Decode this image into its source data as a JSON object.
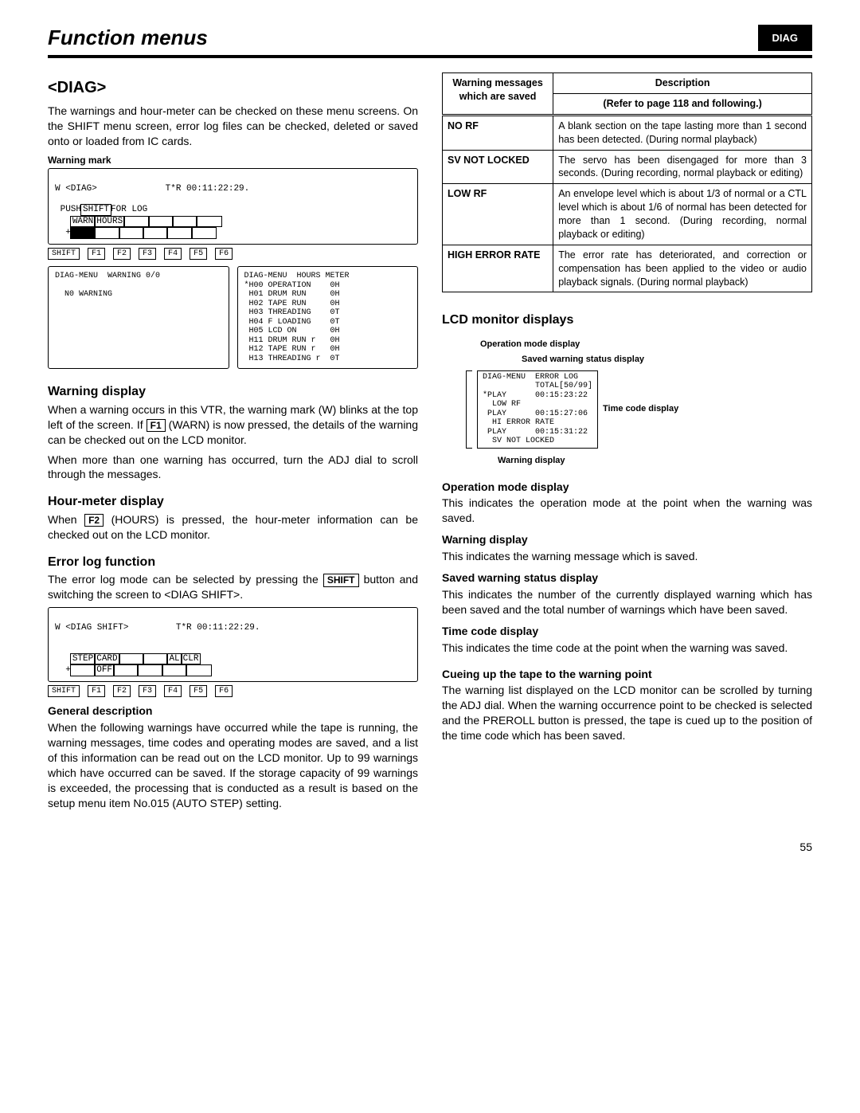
{
  "header": {
    "title": "Function menus",
    "tag": "DIAG"
  },
  "section_title": "<DIAG>",
  "intro": "The warnings and hour-meter can be checked on these menu screens.  On the SHIFT menu screen, error log files can be checked, deleted or saved onto or loaded from IC cards.",
  "warning_mark_caption": "Warning mark",
  "lcd1": {
    "line_title": "W <DIAG>",
    "line_tcr": "T*R 00:11:22:29.",
    "push_prefix": "PUSH",
    "push_shift": "SHIFT",
    "push_suffix": "FOR LOG",
    "btn_warn": "WARN",
    "btn_hours": "HOURS"
  },
  "fkeys_labels": [
    "SHIFT",
    "F1",
    "F2",
    "F3",
    "F4",
    "F5",
    "F6"
  ],
  "lcd_warn": "DIAG-MENU  WARNING 0/0\n\n  N0 WARNING",
  "lcd_hours_header": "DIAG-MENU  HOURS METER",
  "lcd_hours_rows": [
    [
      "*H00",
      "OPERATION",
      "0H"
    ],
    [
      " H01",
      "DRUM RUN",
      "0H"
    ],
    [
      " H02",
      "TAPE RUN",
      "0H"
    ],
    [
      " H03",
      "THREADING",
      "0T"
    ],
    [
      " H04",
      "F LOADING",
      "0T"
    ],
    [
      " H05",
      "LCD ON",
      "0H"
    ],
    [
      " H11",
      "DRUM RUN r",
      "0H"
    ],
    [
      " H12",
      "TAPE RUN r",
      "0H"
    ],
    [
      " H13",
      "THREADING r",
      "0T"
    ]
  ],
  "warning_display": {
    "title": "Warning display",
    "p1a": "When a warning occurs in this VTR, the warning mark (W) blinks at the top left of the screen.  If ",
    "kbd1": "F1",
    "p1b": " (WARN) is now pressed, the details of the warning can be checked out on the LCD monitor.",
    "p2": "When more than one warning has occurred, turn the ADJ dial to scroll through the messages."
  },
  "hour_meter": {
    "title": "Hour-meter display",
    "p1a": "When ",
    "kbd": "F2",
    "p1b": " (HOURS) is pressed, the hour-meter information can be checked out on the LCD monitor."
  },
  "error_log": {
    "title": "Error log function",
    "p1a": "The error log mode can be selected by pressing the ",
    "kbd": "SHIFT",
    "p1b": " button and switching the screen to <DIAG SHIFT>."
  },
  "lcd2": {
    "line_title": "W <DIAG SHIFT>",
    "line_tcr": "T*R 00:11:22:29.",
    "btns": [
      "STEP",
      "CARD",
      "",
      "",
      "AL",
      "CLR"
    ],
    "sub": "OFF"
  },
  "general": {
    "title": "General description",
    "p": "When the following warnings have occurred while the tape is running, the warning messages, time codes and operating modes are saved, and a list of this information can be read out on the LCD monitor.  Up to 99 warnings which have occurred can be saved.  If the storage capacity of 99 warnings is exceeded, the processing that is conducted as a result is based on the setup menu item No.015 (AUTO STEP) setting."
  },
  "wtable": {
    "head1": "Warning messages which are saved",
    "head2": "Description",
    "head2_sub": "(Refer to page 118 and following.)",
    "rows": [
      {
        "name": "NO RF",
        "desc": "A blank section on the tape lasting more than 1 second has been detected. (During normal playback)"
      },
      {
        "name": "SV NOT LOCKED",
        "desc": "The servo has been disengaged for more than 3 seconds.  (During recording, normal playback or editing)"
      },
      {
        "name": "LOW RF",
        "desc": "An envelope level which is about 1/3 of normal or a CTL level which is about 1/6 of normal has been detected for more than 1 second.  (During recording, normal playback or editing)"
      },
      {
        "name": "HIGH ERROR RATE",
        "desc": "The error rate has deteriorated, and correction or compensation has been applied to the video or audio playback signals.  (During normal playback)"
      }
    ]
  },
  "lcd_monitor": {
    "title": "LCD monitor displays",
    "label_op": "Operation mode display",
    "label_saved": "Saved warning status display",
    "label_time": "Time code display",
    "label_warn": "Warning display",
    "box": "DIAG-MENU  ERROR LOG\n           TOTAL[50/99]\n*PLAY      00:15:23:22\n  LOW RF\n PLAY      00:15:27:06\n  HI ERROR RATE\n PLAY      00:15:31:22\n  SV NOT LOCKED"
  },
  "op_disp": {
    "title": "Operation mode display",
    "p": "This indicates the operation mode at the point when the warning was saved."
  },
  "warn_disp": {
    "title": "Warning display",
    "p": "This indicates the warning message which is saved."
  },
  "saved_disp": {
    "title": "Saved warning status display",
    "p": "This indicates the number of the currently displayed warning which has been saved and the total number of warnings which have been saved."
  },
  "time_disp": {
    "title": "Time code display",
    "p": "This indicates the time code at the point when the warning was saved."
  },
  "cue": {
    "title": "Cueing up the tape to the warning point",
    "p": "The warning list displayed on the LCD monitor can be scrolled by turning the ADJ dial.  When the warning occurrence point to be checked is selected and the PREROLL button is pressed, the tape is cued up to the position of the time code which has been saved."
  },
  "page_num": "55"
}
